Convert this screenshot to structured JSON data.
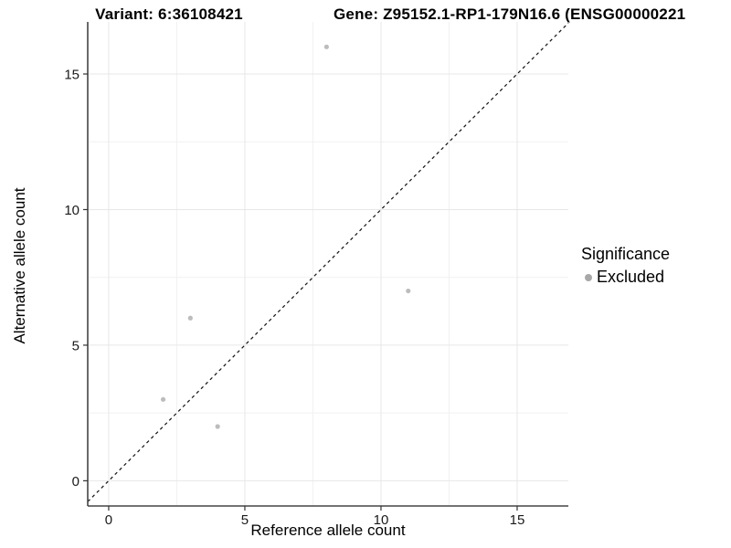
{
  "chart_data": {
    "type": "scatter",
    "titles": {
      "variant": "Variant: 6:36108421",
      "gene": "Gene: Z95152.1-RP1-179N16.6 (ENSG00000221"
    },
    "xlabel": "Reference allele count",
    "ylabel": "Alternative allele count",
    "x_range": [
      -0.77,
      16.88
    ],
    "y_range": [
      -0.93,
      16.92
    ],
    "x_major_breaks": [
      0,
      5,
      10,
      15
    ],
    "x_minor_breaks": [
      2.5,
      7.5,
      12.5
    ],
    "y_major_breaks": [
      0,
      5,
      10,
      15
    ],
    "y_minor_breaks": [
      2.5,
      7.5,
      12.5
    ],
    "x_tick_labels": [
      "0",
      "5",
      "10",
      "15"
    ],
    "y_tick_labels": [
      "0",
      "5",
      "10",
      "15"
    ],
    "series": [
      {
        "name": "Excluded",
        "points": [
          {
            "x": 2,
            "y": 3
          },
          {
            "x": 3,
            "y": 6
          },
          {
            "x": 4,
            "y": 2
          },
          {
            "x": 8,
            "y": 16
          },
          {
            "x": 11,
            "y": 7
          }
        ]
      }
    ],
    "identity_line": {
      "shown": true,
      "style": "dashed",
      "color": "#111111"
    },
    "point_color": "#bcbcbc",
    "grid": {
      "major_color": "#e7e7e7",
      "minor_color": "#f1f1f1",
      "shown": true
    },
    "axis_line_color": "#454545",
    "tick_label_color": "#1a1a1a",
    "legend_position": "right",
    "legend": {
      "title": "Significance",
      "items": [
        {
          "label": "Excluded",
          "color": "#a8a8a8"
        }
      ]
    }
  }
}
